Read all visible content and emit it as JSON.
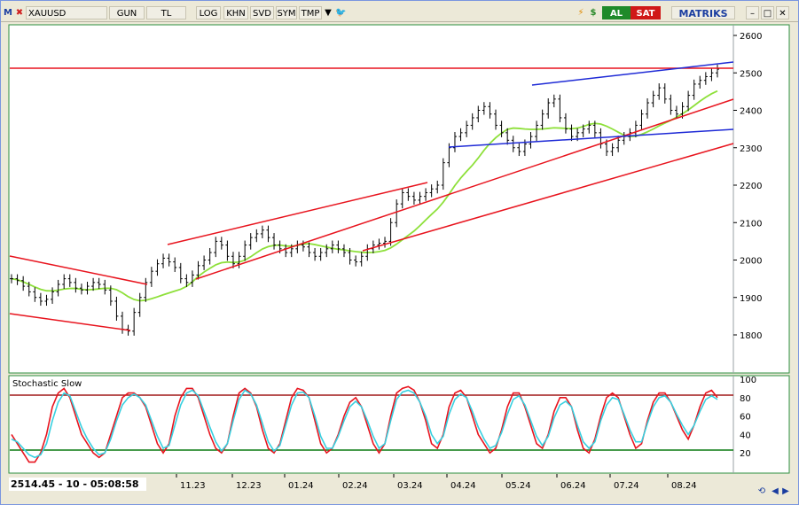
{
  "toolbar": {
    "logo": "M",
    "symbol": "XAUUSD",
    "buttons": [
      "GUN",
      "TL",
      "LOG",
      "KHN",
      "SVD",
      "SYM",
      "TMP"
    ],
    "al_label": "AL",
    "sat_label": "SAT",
    "brand": "MATRIKS"
  },
  "price_axis": {
    "ticks": [
      2600,
      2500,
      2400,
      2300,
      2200,
      2100,
      2000,
      1900,
      1800
    ]
  },
  "time_axis": {
    "labels": [
      "11.23",
      "12.23",
      "01.24",
      "02.24",
      "03.24",
      "04.24",
      "05.24",
      "06.24",
      "07.24",
      "08.24"
    ]
  },
  "stochastic": {
    "title": "Stochastic Slow",
    "ticks": [
      100,
      80,
      60,
      40,
      20
    ]
  },
  "readout": "2514.45 - 10 - 05:08:58",
  "colors": {
    "trend_red": "#e8141e",
    "trend_blue": "#1e2ad6",
    "ma_green": "#8ee03a",
    "stoch_red": "#e8141e",
    "stoch_cyan": "#37d0e0",
    "upper_band": "#a01818",
    "lower_band": "#0a7a10"
  },
  "chart_data": {
    "type": "line",
    "price_series_close": [
      1950,
      1945,
      1930,
      1915,
      1900,
      1890,
      1895,
      1915,
      1935,
      1950,
      1940,
      1925,
      1920,
      1930,
      1940,
      1935,
      1920,
      1890,
      1850,
      1815,
      1810,
      1860,
      1900,
      1940,
      1970,
      1990,
      2005,
      1995,
      1980,
      1950,
      1940,
      1960,
      1985,
      2000,
      2020,
      2050,
      2040,
      2010,
      1990,
      2010,
      2040,
      2060,
      2070,
      2080,
      2060,
      2040,
      2030,
      2020,
      2030,
      2040,
      2035,
      2020,
      2010,
      2020,
      2030,
      2040,
      2030,
      2020,
      2000,
      1995,
      2010,
      2030,
      2040,
      2045,
      2050,
      2100,
      2150,
      2180,
      2170,
      2160,
      2170,
      2180,
      2190,
      2200,
      2260,
      2300,
      2330,
      2340,
      2360,
      2380,
      2400,
      2410,
      2390,
      2360,
      2340,
      2320,
      2300,
      2290,
      2310,
      2330,
      2360,
      2390,
      2420,
      2430,
      2380,
      2350,
      2330,
      2340,
      2350,
      2360,
      2340,
      2310,
      2290,
      2300,
      2320,
      2330,
      2340,
      2360,
      2390,
      2420,
      2440,
      2460,
      2430,
      2400,
      2390,
      2410,
      2440,
      2470,
      2480,
      2490,
      2500,
      2510
    ],
    "stoch_k": [
      40,
      30,
      20,
      10,
      10,
      20,
      40,
      70,
      85,
      90,
      80,
      60,
      40,
      30,
      20,
      15,
      20,
      40,
      60,
      80,
      85,
      85,
      80,
      70,
      50,
      30,
      20,
      30,
      60,
      80,
      90,
      90,
      80,
      60,
      40,
      25,
      20,
      30,
      60,
      85,
      90,
      85,
      70,
      45,
      25,
      20,
      30,
      55,
      80,
      90,
      88,
      80,
      55,
      30,
      20,
      25,
      40,
      60,
      75,
      80,
      70,
      50,
      30,
      20,
      30,
      60,
      85,
      90,
      92,
      88,
      75,
      55,
      30,
      25,
      40,
      70,
      85,
      88,
      80,
      60,
      40,
      30,
      20,
      25,
      45,
      70,
      85,
      85,
      70,
      50,
      30,
      25,
      40,
      65,
      80,
      80,
      70,
      45,
      25,
      20,
      35,
      60,
      80,
      85,
      80,
      60,
      40,
      25,
      30,
      55,
      75,
      85,
      85,
      75,
      60,
      45,
      35,
      50,
      70,
      85,
      88,
      80
    ],
    "stoch_d": [
      35,
      32,
      25,
      18,
      15,
      18,
      30,
      55,
      75,
      85,
      82,
      65,
      48,
      35,
      25,
      18,
      20,
      35,
      55,
      72,
      80,
      84,
      80,
      72,
      55,
      38,
      25,
      28,
      50,
      72,
      85,
      88,
      82,
      65,
      48,
      32,
      22,
      30,
      55,
      78,
      88,
      84,
      72,
      52,
      32,
      22,
      28,
      50,
      72,
      85,
      86,
      80,
      60,
      38,
      25,
      25,
      38,
      55,
      70,
      76,
      70,
      55,
      38,
      25,
      30,
      55,
      78,
      86,
      88,
      85,
      75,
      60,
      40,
      30,
      38,
      62,
      78,
      84,
      80,
      65,
      48,
      35,
      25,
      28,
      42,
      62,
      78,
      82,
      72,
      55,
      38,
      28,
      38,
      58,
      72,
      76,
      70,
      50,
      32,
      25,
      32,
      55,
      72,
      80,
      78,
      62,
      45,
      32,
      32,
      52,
      70,
      80,
      82,
      75,
      62,
      50,
      40,
      50,
      65,
      78,
      82,
      78
    ]
  }
}
